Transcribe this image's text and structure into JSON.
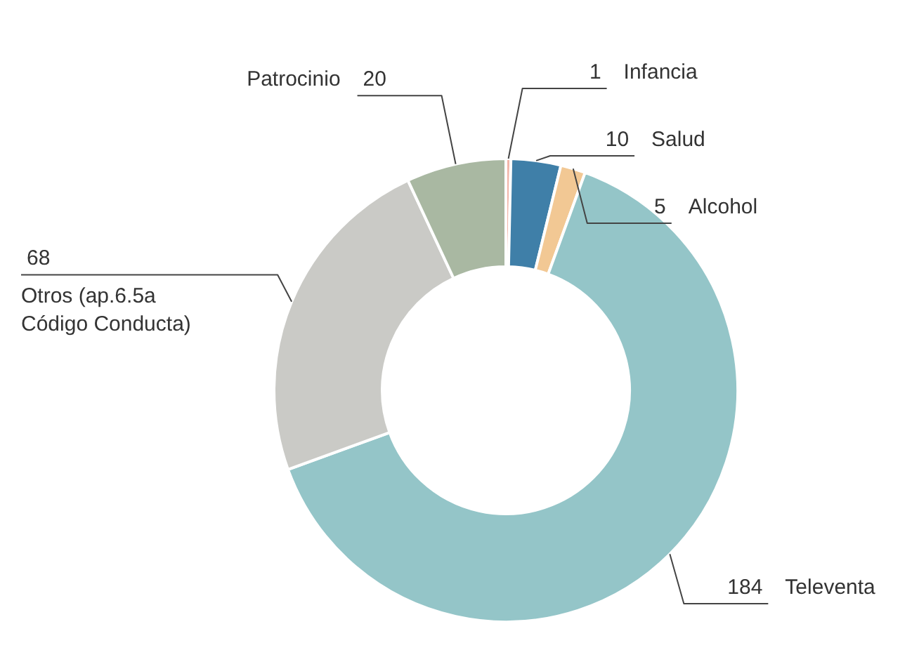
{
  "chart_data": {
    "type": "donut",
    "categories": [
      "Infancia",
      "Salud",
      "Alcohol",
      "Televenta",
      "Otros (ap.6.5a Código Conducta)",
      "Patrocinio"
    ],
    "values": [
      1,
      10,
      5,
      184,
      68,
      20
    ],
    "colors": [
      "#f2b5a8",
      "#3f7fa8",
      "#f2c894",
      "#94c5c8",
      "#cacac6",
      "#a9b8a2"
    ],
    "data_labels": true
  }
}
